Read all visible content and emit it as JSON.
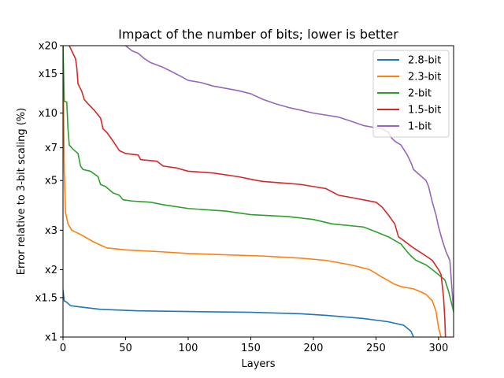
{
  "chart_data": {
    "type": "line",
    "title": "Impact of the number of bits; lower is better",
    "xlabel": "Layers",
    "ylabel": "Error relative to 3-bit scaling (%)",
    "xlim": [
      0,
      312
    ],
    "ylim": [
      1,
      20
    ],
    "yscale": "log",
    "grid": false,
    "legend_position": "top-right",
    "xticks": [
      0,
      50,
      100,
      150,
      200,
      250,
      300
    ],
    "xtick_labels": [
      "0",
      "50",
      "100",
      "150",
      "200",
      "250",
      "300"
    ],
    "yticks": [
      1,
      1.5,
      2,
      3,
      5,
      7,
      10,
      15,
      20
    ],
    "ytick_labels": [
      "x1",
      "x1.5",
      "x2",
      "x3",
      "x5",
      "x7",
      "x10",
      "x15",
      "x20"
    ],
    "series": [
      {
        "name": "2.8-bit",
        "color": "#1f77b4",
        "points": [
          [
            0,
            1.62
          ],
          [
            1,
            1.45
          ],
          [
            3,
            1.43
          ],
          [
            6,
            1.38
          ],
          [
            15,
            1.36
          ],
          [
            30,
            1.33
          ],
          [
            60,
            1.31
          ],
          [
            100,
            1.3
          ],
          [
            150,
            1.29
          ],
          [
            190,
            1.27
          ],
          [
            210,
            1.25
          ],
          [
            240,
            1.21
          ],
          [
            260,
            1.17
          ],
          [
            272,
            1.13
          ],
          [
            278,
            1.06
          ],
          [
            280,
            1.0
          ]
        ]
      },
      {
        "name": "2.3-bit",
        "color": "#ff7f0e",
        "points": [
          [
            0,
            20
          ],
          [
            1,
            5.5
          ],
          [
            2,
            3.6
          ],
          [
            4,
            3.2
          ],
          [
            7,
            3.0
          ],
          [
            15,
            2.85
          ],
          [
            25,
            2.65
          ],
          [
            35,
            2.5
          ],
          [
            50,
            2.45
          ],
          [
            80,
            2.4
          ],
          [
            100,
            2.36
          ],
          [
            130,
            2.33
          ],
          [
            160,
            2.3
          ],
          [
            190,
            2.25
          ],
          [
            210,
            2.2
          ],
          [
            230,
            2.1
          ],
          [
            245,
            2.0
          ],
          [
            255,
            1.85
          ],
          [
            265,
            1.72
          ],
          [
            270,
            1.68
          ],
          [
            280,
            1.64
          ],
          [
            285,
            1.6
          ],
          [
            290,
            1.55
          ],
          [
            295,
            1.45
          ],
          [
            298,
            1.3
          ],
          [
            300,
            1.1
          ],
          [
            302,
            1.0
          ]
        ]
      },
      {
        "name": "2-bit",
        "color": "#2ca02c",
        "points": [
          [
            0,
            20
          ],
          [
            1,
            11.3
          ],
          [
            3,
            11.2
          ],
          [
            4,
            8.5
          ],
          [
            5,
            7.2
          ],
          [
            8,
            6.9
          ],
          [
            12,
            6.6
          ],
          [
            14,
            5.8
          ],
          [
            16,
            5.6
          ],
          [
            22,
            5.5
          ],
          [
            28,
            5.2
          ],
          [
            30,
            4.8
          ],
          [
            34,
            4.7
          ],
          [
            40,
            4.4
          ],
          [
            45,
            4.3
          ],
          [
            48,
            4.1
          ],
          [
            55,
            4.05
          ],
          [
            70,
            4.0
          ],
          [
            80,
            3.9
          ],
          [
            100,
            3.75
          ],
          [
            130,
            3.65
          ],
          [
            150,
            3.52
          ],
          [
            180,
            3.45
          ],
          [
            200,
            3.35
          ],
          [
            215,
            3.2
          ],
          [
            240,
            3.1
          ],
          [
            250,
            2.95
          ],
          [
            260,
            2.8
          ],
          [
            270,
            2.6
          ],
          [
            275,
            2.4
          ],
          [
            278,
            2.3
          ],
          [
            282,
            2.2
          ],
          [
            290,
            2.1
          ],
          [
            295,
            2.0
          ],
          [
            300,
            1.9
          ],
          [
            305,
            1.8
          ],
          [
            308,
            1.6
          ],
          [
            312,
            1.3
          ]
        ]
      },
      {
        "name": "1.5-bit",
        "color": "#d62728",
        "points": [
          [
            5,
            20
          ],
          [
            10,
            17.5
          ],
          [
            11,
            16
          ],
          [
            12,
            13.5
          ],
          [
            15,
            12.5
          ],
          [
            17,
            11.5
          ],
          [
            20,
            11.0
          ],
          [
            25,
            10.3
          ],
          [
            30,
            9.5
          ],
          [
            32,
            8.5
          ],
          [
            35,
            8.2
          ],
          [
            40,
            7.5
          ],
          [
            45,
            6.8
          ],
          [
            50,
            6.6
          ],
          [
            60,
            6.5
          ],
          [
            62,
            6.2
          ],
          [
            75,
            6.1
          ],
          [
            80,
            5.8
          ],
          [
            90,
            5.7
          ],
          [
            100,
            5.5
          ],
          [
            120,
            5.4
          ],
          [
            140,
            5.2
          ],
          [
            155,
            5.0
          ],
          [
            160,
            4.95
          ],
          [
            180,
            4.85
          ],
          [
            190,
            4.8
          ],
          [
            200,
            4.7
          ],
          [
            210,
            4.6
          ],
          [
            220,
            4.3
          ],
          [
            230,
            4.2
          ],
          [
            250,
            4.0
          ],
          [
            255,
            3.8
          ],
          [
            260,
            3.5
          ],
          [
            265,
            3.2
          ],
          [
            268,
            2.8
          ],
          [
            272,
            2.7
          ],
          [
            280,
            2.5
          ],
          [
            290,
            2.3
          ],
          [
            295,
            2.2
          ],
          [
            300,
            2.0
          ],
          [
            302,
            1.9
          ],
          [
            304,
            1.5
          ],
          [
            305,
            1.2
          ],
          [
            305.5,
            1.0
          ]
        ]
      },
      {
        "name": "1-bit",
        "color": "#9467bd",
        "points": [
          [
            50,
            20
          ],
          [
            55,
            19.0
          ],
          [
            60,
            18.5
          ],
          [
            65,
            17.5
          ],
          [
            70,
            16.8
          ],
          [
            80,
            16.0
          ],
          [
            85,
            15.5
          ],
          [
            95,
            14.5
          ],
          [
            100,
            14.0
          ],
          [
            110,
            13.7
          ],
          [
            120,
            13.2
          ],
          [
            140,
            12.6
          ],
          [
            150,
            12.2
          ],
          [
            160,
            11.5
          ],
          [
            170,
            11.0
          ],
          [
            180,
            10.6
          ],
          [
            190,
            10.3
          ],
          [
            200,
            10.0
          ],
          [
            210,
            9.8
          ],
          [
            220,
            9.6
          ],
          [
            230,
            9.2
          ],
          [
            240,
            8.8
          ],
          [
            250,
            8.6
          ],
          [
            255,
            8.5
          ],
          [
            260,
            8.2
          ],
          [
            262,
            7.8
          ],
          [
            265,
            7.5
          ],
          [
            270,
            7.2
          ],
          [
            275,
            6.5
          ],
          [
            278,
            6.0
          ],
          [
            280,
            5.6
          ],
          [
            290,
            5.0
          ],
          [
            292,
            4.7
          ],
          [
            295,
            4.0
          ],
          [
            298,
            3.5
          ],
          [
            300,
            3.1
          ],
          [
            303,
            2.7
          ],
          [
            306,
            2.4
          ],
          [
            309,
            2.2
          ],
          [
            312,
            1.3
          ]
        ]
      }
    ]
  }
}
